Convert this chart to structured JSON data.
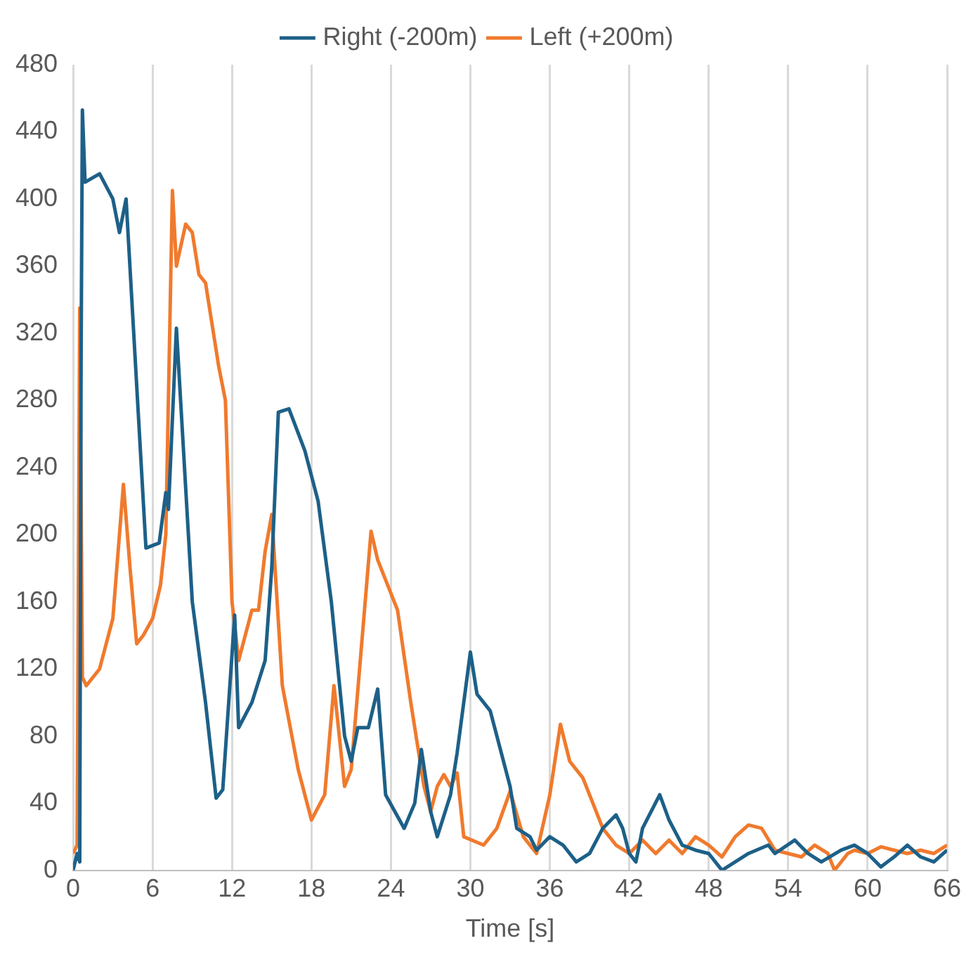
{
  "chart_data": {
    "type": "line",
    "xlabel": "Time [s]",
    "xlim": [
      0,
      66
    ],
    "xticks": [
      0,
      6,
      12,
      18,
      24,
      30,
      36,
      42,
      48,
      54,
      60,
      66
    ],
    "ylim": [
      0,
      480
    ],
    "yticks": [
      0,
      40,
      80,
      120,
      160,
      200,
      240,
      280,
      320,
      360,
      400,
      440,
      480
    ],
    "grid": "x",
    "legend": "top",
    "marker": "none",
    "line_style": "solid",
    "series": [
      {
        "name": "Right (-200m)",
        "color": "#1d6088",
        "x": [
          0,
          0.3,
          0.5,
          0.6,
          0.7,
          0.9,
          2,
          3,
          3.5,
          4,
          5.5,
          6.5,
          7,
          7.2,
          7.8,
          9,
          10,
          10.8,
          11.3,
          12.2,
          12.5,
          13.5,
          14.5,
          15,
          15.5,
          16.3,
          17.5,
          18.5,
          19.5,
          20.5,
          21,
          21.5,
          22.3,
          23,
          23.6,
          25,
          25.8,
          26.3,
          27,
          27.5,
          28.5,
          29,
          30,
          30.5,
          31.5,
          32,
          33,
          33.5,
          34.5,
          35,
          36,
          37,
          38,
          39,
          40,
          41,
          41.5,
          42,
          42.5,
          43,
          44.3,
          45,
          46,
          47,
          48,
          49,
          50,
          51,
          52.5,
          53,
          54.5,
          55.5,
          56.5,
          58,
          59,
          60,
          61,
          62,
          63,
          64,
          65,
          66
        ],
        "values": [
          0,
          10,
          5,
          300,
          453,
          410,
          415,
          400,
          380,
          400,
          192,
          195,
          225,
          215,
          323,
          160,
          100,
          43,
          48,
          152,
          85,
          100,
          125,
          180,
          273,
          275,
          250,
          220,
          160,
          80,
          65,
          85,
          85,
          108,
          45,
          25,
          40,
          72,
          35,
          20,
          45,
          70,
          130,
          105,
          95,
          80,
          50,
          25,
          20,
          12,
          20,
          15,
          5,
          10,
          25,
          33,
          25,
          10,
          5,
          25,
          45,
          30,
          15,
          12,
          10,
          0,
          5,
          10,
          15,
          10,
          18,
          10,
          5,
          12,
          15,
          10,
          2,
          8,
          15,
          8,
          5,
          12
        ]
      },
      {
        "name": "Left (+200m)",
        "color": "#f07a2d",
        "x": [
          0,
          0.3,
          0.5,
          0.7,
          1,
          2,
          3,
          3.5,
          3.8,
          4.3,
          4.8,
          5.3,
          6,
          6.6,
          7,
          7.5,
          7.8,
          8.5,
          9,
          9.5,
          10,
          11,
          11.5,
          12,
          12.5,
          13.5,
          14,
          14.5,
          15,
          15.8,
          17,
          18,
          19,
          19.7,
          20.5,
          21,
          22.5,
          23,
          24.5,
          25.5,
          26.5,
          27,
          27.5,
          28,
          28.5,
          29,
          29.5,
          31,
          32,
          33,
          34,
          35,
          36,
          36.8,
          37.5,
          38.5,
          40,
          41,
          42,
          43,
          44,
          45,
          46,
          47,
          48,
          49,
          50,
          51,
          52,
          53,
          54,
          55,
          56,
          57,
          57.5,
          58.5,
          59,
          60,
          61,
          62,
          63,
          64,
          65,
          66
        ],
        "values": [
          10,
          15,
          335,
          115,
          110,
          120,
          150,
          200,
          230,
          180,
          135,
          140,
          150,
          170,
          200,
          405,
          360,
          385,
          380,
          355,
          350,
          300,
          280,
          160,
          125,
          155,
          155,
          190,
          212,
          110,
          60,
          30,
          45,
          110,
          50,
          60,
          202,
          185,
          155,
          100,
          50,
          35,
          50,
          57,
          50,
          58,
          20,
          15,
          25,
          47,
          20,
          10,
          45,
          87,
          65,
          55,
          25,
          15,
          10,
          18,
          10,
          18,
          10,
          20,
          15,
          8,
          20,
          27,
          25,
          12,
          10,
          8,
          15,
          10,
          0,
          10,
          12,
          10,
          14,
          12,
          10,
          12,
          10,
          15
        ]
      }
    ]
  }
}
